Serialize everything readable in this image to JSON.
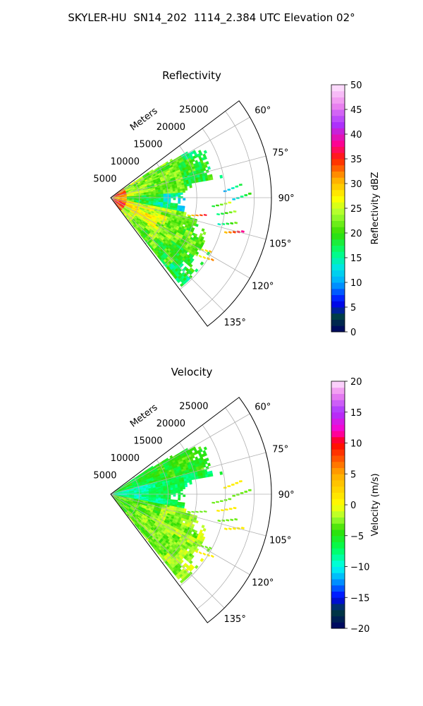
{
  "suptitle": "SKYLER-HU  SN14_202  1114_2.384 UTC Elevation 02°",
  "chart_data": [
    {
      "type": "heatmap",
      "projection": "polar-sector",
      "title": "Reflectivity",
      "range_label": "Meters",
      "r_ticks": [
        5000,
        10000,
        15000,
        20000,
        25000
      ],
      "r_tick_labels": [
        "5000",
        "10000",
        "15000",
        "20000",
        "25000"
      ],
      "rmax": 28000,
      "theta_range_deg": [
        53,
        143
      ],
      "theta_ticks": [
        60,
        75,
        90,
        105,
        120,
        135
      ],
      "theta_tick_labels": [
        "60°",
        "75°",
        "90°",
        "105°",
        "120°",
        "135°"
      ],
      "grid": true,
      "colorbar": {
        "label": "Reflectivity dBZ",
        "range": [
          0,
          50
        ],
        "ticks": [
          0,
          5,
          10,
          15,
          20,
          25,
          30,
          35,
          40,
          45,
          50
        ],
        "tick_labels": [
          "0",
          "5",
          "10",
          "15",
          "20",
          "25",
          "30",
          "35",
          "40",
          "45",
          "50"
        ],
        "stops": [
          {
            "v": 0,
            "c": "#000066"
          },
          {
            "v": 3,
            "c": "#004040"
          },
          {
            "v": 6,
            "c": "#0000ff"
          },
          {
            "v": 10,
            "c": "#00aaff"
          },
          {
            "v": 13,
            "c": "#00e5e5"
          },
          {
            "v": 16,
            "c": "#00ff7f"
          },
          {
            "v": 20,
            "c": "#33dd00"
          },
          {
            "v": 24,
            "c": "#aaff33"
          },
          {
            "v": 27,
            "c": "#ffff00"
          },
          {
            "v": 31,
            "c": "#ffaa00"
          },
          {
            "v": 35,
            "c": "#ff2000"
          },
          {
            "v": 38,
            "c": "#ff0090"
          },
          {
            "v": 42,
            "c": "#aa33ff"
          },
          {
            "v": 46,
            "c": "#ee88ee"
          },
          {
            "v": 50,
            "c": "#ffe8ff"
          }
        ]
      }
    },
    {
      "type": "heatmap",
      "projection": "polar-sector",
      "title": "Velocity",
      "range_label": "Meters",
      "r_ticks": [
        5000,
        10000,
        15000,
        20000,
        25000
      ],
      "r_tick_labels": [
        "5000",
        "10000",
        "15000",
        "20000",
        "25000"
      ],
      "rmax": 28000,
      "theta_range_deg": [
        53,
        143
      ],
      "theta_ticks": [
        60,
        75,
        90,
        105,
        120,
        135
      ],
      "theta_tick_labels": [
        "60°",
        "75°",
        "90°",
        "105°",
        "120°",
        "135°"
      ],
      "grid": true,
      "colorbar": {
        "label": "Velocity (m/s)",
        "range": [
          -20,
          20
        ],
        "ticks": [
          -20,
          -15,
          -10,
          -5,
          0,
          5,
          10,
          15,
          20
        ],
        "tick_labels": [
          "−20",
          "−15",
          "−10",
          "−5",
          "0",
          "5",
          "10",
          "15",
          "20"
        ],
        "stops": [
          {
            "v": -20,
            "c": "#000066"
          },
          {
            "v": -17,
            "c": "#004040"
          },
          {
            "v": -15,
            "c": "#0000ff"
          },
          {
            "v": -12,
            "c": "#00aaff"
          },
          {
            "v": -10,
            "c": "#00ffee"
          },
          {
            "v": -7,
            "c": "#00ff55"
          },
          {
            "v": -4,
            "c": "#33dd00"
          },
          {
            "v": -2,
            "c": "#aaff33"
          },
          {
            "v": 0,
            "c": "#ffff00"
          },
          {
            "v": 5,
            "c": "#ffaa00"
          },
          {
            "v": 10,
            "c": "#ff0000"
          },
          {
            "v": 12,
            "c": "#ff00cc"
          },
          {
            "v": 15,
            "c": "#aa33ff"
          },
          {
            "v": 18,
            "c": "#ee88ee"
          },
          {
            "v": 20,
            "c": "#ffe8ff"
          }
        ]
      }
    }
  ]
}
